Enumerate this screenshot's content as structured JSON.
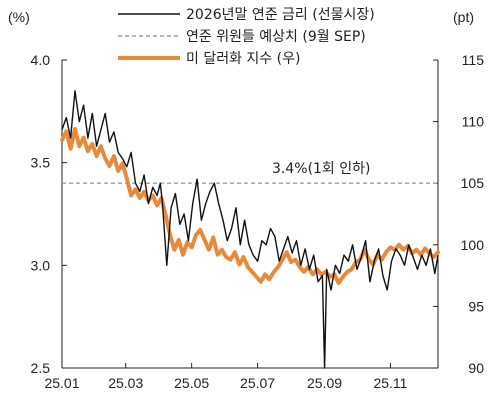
{
  "chart_data": {
    "type": "line",
    "left_axis_unit": "(%)",
    "right_axis_unit": "(pt)",
    "x_ticks": [
      "25.01",
      "25.03",
      "25.05",
      "25.07",
      "25.09",
      "25.11"
    ],
    "x_range": [
      "2025-01-01",
      "2025-12-15"
    ],
    "y_left": {
      "range": [
        2.5,
        4.0
      ],
      "ticks": [
        "4.0",
        "3.5",
        "3.0",
        "2.5"
      ]
    },
    "y_right": {
      "range": [
        90,
        115
      ],
      "ticks": [
        "115",
        "110",
        "105",
        "100",
        "95",
        "90"
      ]
    },
    "reference_line": {
      "label": "3.4%(1회 인하)",
      "value": 3.4
    },
    "series": [
      {
        "name": "2026년말 연준 금리 (선물시장)",
        "axis": "left",
        "color": "#111111",
        "x": [
          "2025-01-01",
          "2025-01-05",
          "2025-01-09",
          "2025-01-13",
          "2025-01-17",
          "2025-01-21",
          "2025-01-25",
          "2025-01-29",
          "2025-02-02",
          "2025-02-06",
          "2025-02-10",
          "2025-02-14",
          "2025-02-18",
          "2025-02-22",
          "2025-02-26",
          "2025-03-02",
          "2025-03-06",
          "2025-03-10",
          "2025-03-14",
          "2025-03-18",
          "2025-03-22",
          "2025-03-26",
          "2025-03-30",
          "2025-04-02",
          "2025-04-04",
          "2025-04-06",
          "2025-04-08",
          "2025-04-12",
          "2025-04-16",
          "2025-04-20",
          "2025-04-24",
          "2025-04-28",
          "2025-05-02",
          "2025-05-06",
          "2025-05-10",
          "2025-05-14",
          "2025-05-18",
          "2025-05-22",
          "2025-05-26",
          "2025-05-30",
          "2025-06-03",
          "2025-06-07",
          "2025-06-11",
          "2025-06-15",
          "2025-06-19",
          "2025-06-23",
          "2025-06-27",
          "2025-07-01",
          "2025-07-05",
          "2025-07-09",
          "2025-07-13",
          "2025-07-17",
          "2025-07-21",
          "2025-07-25",
          "2025-07-29",
          "2025-08-02",
          "2025-08-06",
          "2025-08-10",
          "2025-08-14",
          "2025-08-18",
          "2025-08-22",
          "2025-08-26",
          "2025-08-30",
          "2025-09-01",
          "2025-09-03",
          "2025-09-07",
          "2025-09-11",
          "2025-09-15",
          "2025-09-19",
          "2025-09-23",
          "2025-09-27",
          "2025-10-01",
          "2025-10-05",
          "2025-10-09",
          "2025-10-13",
          "2025-10-17",
          "2025-10-21",
          "2025-10-25",
          "2025-10-29",
          "2025-11-02",
          "2025-11-06",
          "2025-11-10",
          "2025-11-14",
          "2025-11-18",
          "2025-11-22",
          "2025-11-26",
          "2025-11-30",
          "2025-12-04",
          "2025-12-08",
          "2025-12-12",
          "2025-12-15"
        ],
        "y": [
          3.66,
          3.72,
          3.62,
          3.85,
          3.7,
          3.78,
          3.62,
          3.74,
          3.58,
          3.66,
          3.74,
          3.6,
          3.65,
          3.55,
          3.52,
          3.48,
          3.55,
          3.4,
          3.36,
          3.44,
          3.3,
          3.38,
          3.34,
          3.4,
          3.3,
          3.15,
          3.0,
          3.28,
          3.35,
          3.2,
          3.25,
          3.12,
          3.3,
          3.42,
          3.22,
          3.3,
          3.36,
          3.4,
          3.3,
          3.22,
          3.12,
          3.18,
          3.28,
          3.1,
          3.22,
          3.1,
          3.05,
          3.02,
          3.12,
          3.1,
          3.18,
          3.14,
          3.02,
          3.08,
          3.14,
          3.06,
          3.12,
          3.0,
          3.08,
          2.98,
          3.05,
          2.92,
          2.95,
          2.5,
          2.98,
          2.88,
          3.0,
          2.96,
          3.05,
          3.02,
          3.1,
          2.98,
          3.04,
          3.12,
          2.92,
          3.02,
          3.08,
          2.95,
          2.88,
          3.02,
          3.08,
          3.05,
          3.0,
          3.1,
          3.04,
          2.98,
          3.05,
          3.0,
          3.08,
          2.96,
          3.05
        ]
      },
      {
        "name": "연준 위원들 예상치 (9월 SEP)",
        "axis": "left",
        "color": "#9e9e9e",
        "x": [
          "2025-01-01",
          "2025-12-15"
        ],
        "y": [
          3.4,
          3.4
        ]
      },
      {
        "name": "미 달러화 지수 (우)",
        "axis": "right",
        "color": "#e88a3a",
        "x": [
          "2025-01-01",
          "2025-01-05",
          "2025-01-09",
          "2025-01-13",
          "2025-01-17",
          "2025-01-21",
          "2025-01-25",
          "2025-01-29",
          "2025-02-02",
          "2025-02-06",
          "2025-02-10",
          "2025-02-14",
          "2025-02-18",
          "2025-02-22",
          "2025-02-26",
          "2025-03-02",
          "2025-03-06",
          "2025-03-10",
          "2025-03-14",
          "2025-03-18",
          "2025-03-22",
          "2025-03-26",
          "2025-03-30",
          "2025-04-03",
          "2025-04-07",
          "2025-04-11",
          "2025-04-15",
          "2025-04-19",
          "2025-04-23",
          "2025-04-27",
          "2025-05-01",
          "2025-05-05",
          "2025-05-09",
          "2025-05-13",
          "2025-05-17",
          "2025-05-21",
          "2025-05-25",
          "2025-05-29",
          "2025-06-02",
          "2025-06-06",
          "2025-06-10",
          "2025-06-14",
          "2025-06-18",
          "2025-06-22",
          "2025-06-26",
          "2025-06-30",
          "2025-07-04",
          "2025-07-08",
          "2025-07-12",
          "2025-07-16",
          "2025-07-20",
          "2025-07-24",
          "2025-07-28",
          "2025-08-01",
          "2025-08-05",
          "2025-08-09",
          "2025-08-13",
          "2025-08-17",
          "2025-08-21",
          "2025-08-25",
          "2025-08-29",
          "2025-09-02",
          "2025-09-06",
          "2025-09-10",
          "2025-09-14",
          "2025-09-18",
          "2025-09-22",
          "2025-09-26",
          "2025-09-30",
          "2025-10-04",
          "2025-10-08",
          "2025-10-12",
          "2025-10-16",
          "2025-10-20",
          "2025-10-24",
          "2025-10-28",
          "2025-11-01",
          "2025-11-05",
          "2025-11-09",
          "2025-11-13",
          "2025-11-17",
          "2025-11-21",
          "2025-11-25",
          "2025-11-29",
          "2025-12-03",
          "2025-12-07",
          "2025-12-11",
          "2025-12-15"
        ],
        "y": [
          108.5,
          109.2,
          107.8,
          109.4,
          108.0,
          108.7,
          107.6,
          108.2,
          107.2,
          108.0,
          107.0,
          106.4,
          107.2,
          106.0,
          106.6,
          105.4,
          104.0,
          104.5,
          103.8,
          104.3,
          103.6,
          104.0,
          103.2,
          103.8,
          102.4,
          100.8,
          99.6,
          100.4,
          99.2,
          100.2,
          99.8,
          100.8,
          101.2,
          100.4,
          99.6,
          100.6,
          99.2,
          99.6,
          99.0,
          98.8,
          99.4,
          98.4,
          99.0,
          98.2,
          97.8,
          97.4,
          97.0,
          97.6,
          97.2,
          97.8,
          98.2,
          98.8,
          99.4,
          98.6,
          98.8,
          98.2,
          97.8,
          98.2,
          97.6,
          98.0,
          97.6,
          97.8,
          97.4,
          97.6,
          96.9,
          97.4,
          97.8,
          98.0,
          98.6,
          98.8,
          99.6,
          98.8,
          98.4,
          99.2,
          98.8,
          99.4,
          99.8,
          99.6,
          100.0,
          99.6,
          99.9,
          99.3,
          99.6,
          99.2,
          99.7,
          99.3,
          99.0,
          99.4
        ]
      }
    ]
  }
}
